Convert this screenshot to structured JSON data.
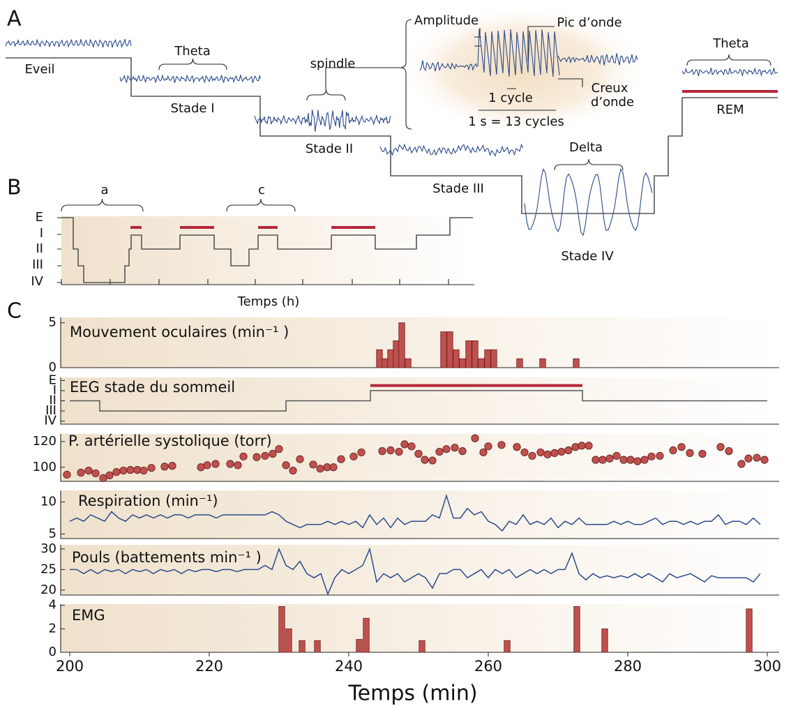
{
  "panel_labels": [
    "A",
    "B",
    "C"
  ],
  "panel_a": {
    "stages": [
      "Eveil",
      "Stade I",
      "Stade II",
      "Stade III",
      "Stade IV",
      "REM"
    ],
    "waves": [
      "Theta",
      "spindle",
      "Delta",
      "Theta"
    ],
    "inset": {
      "amplitude": "Amplitude",
      "peak": "Pic d’onde",
      "trough": [
        "Creux",
        "d’onde"
      ],
      "cycle": "1 cycle",
      "scale": "1 s = 13 cycles"
    }
  },
  "panel_b": {
    "brackets": [
      "a",
      "c"
    ],
    "levels": [
      "E",
      "I",
      "II",
      "III",
      "IV"
    ],
    "xlabel": "Temps (h)"
  },
  "chart_data": [
    {
      "type": "bar",
      "title": "Mouvement oculaires (min⁻¹ )",
      "color": "#c0504d",
      "x": [
        244.4,
        245.2,
        246.0,
        246.8,
        247.6,
        248.5,
        253.6,
        254.5,
        255.4,
        256.3,
        257.2,
        258.1,
        259.0,
        259.9,
        260.8,
        264.5,
        267.8,
        272.6
      ],
      "values": [
        2,
        1,
        2,
        3,
        5,
        1,
        4,
        4,
        2,
        1,
        3,
        3,
        1,
        2,
        2,
        1,
        1,
        1
      ],
      "xlim": [
        198.7,
        301.7
      ],
      "ylim": [
        0,
        5.6
      ],
      "yticks": [
        0,
        5
      ]
    },
    {
      "type": "step",
      "title": "EEG stade du sommeil",
      "color": "#555555",
      "x": [
        200,
        204.3,
        204.3,
        231.0,
        231.0,
        243.1,
        243.1,
        273.5,
        273.5,
        300
      ],
      "values": [
        2,
        2,
        3,
        3,
        2,
        2,
        1,
        1,
        2,
        2
      ],
      "highlight": {
        "x": [
          243.1,
          273.5
        ],
        "y": 0.5,
        "color": "#b5273a"
      },
      "xlim": [
        198.7,
        301.7
      ],
      "ylim": [
        4.3,
        -0.3
      ],
      "yticks": [
        {
          "value": 0,
          "label": "E"
        },
        {
          "value": 1,
          "label": "I"
        },
        {
          "value": 2,
          "label": "II"
        },
        {
          "value": 3,
          "label": "III"
        },
        {
          "value": 4,
          "label": "IV"
        }
      ]
    },
    {
      "type": "scatter",
      "title": "P. artérielle systolique (torr)",
      "color": "#c0504d",
      "x": [
        199.6,
        201.6,
        202.7,
        203.7,
        204.8,
        205.7,
        206.7,
        207.7,
        208.7,
        209.7,
        210.6,
        211.7,
        213.6,
        214.7,
        218.8,
        219.7,
        220.9,
        223.0,
        224.1,
        224.9,
        226.8,
        228.0,
        229.1,
        230.0,
        231.0,
        232.0,
        233.0,
        234.9,
        235.9,
        236.9,
        237.8,
        238.9,
        240.7,
        241.8,
        244.8,
        246.0,
        247.2,
        248.0,
        249.0,
        250.0,
        250.9,
        252.0,
        253.0,
        254.0,
        255.2,
        256.3,
        258.1,
        259.3,
        260.0,
        261.9,
        264.1,
        265.2,
        266.3,
        267.5,
        268.5,
        269.5,
        270.5,
        271.5,
        272.5,
        273.4,
        274.4,
        275.4,
        276.4,
        277.4,
        278.4,
        279.4,
        280.4,
        281.4,
        282.4,
        283.4,
        284.6,
        286.5,
        287.7,
        288.9,
        290.7,
        293.3,
        294.5,
        296.3,
        297.3,
        298.5,
        299.6
      ],
      "values": [
        94.2,
        95.8,
        97.4,
        95.3,
        91.6,
        93.7,
        96.3,
        97.4,
        97.9,
        97.9,
        97.4,
        99.5,
        100.5,
        101.1,
        100,
        101.6,
        102.6,
        102.6,
        101.6,
        108.4,
        107.9,
        108.9,
        110.5,
        114.2,
        101.6,
        97.4,
        106.3,
        102.1,
        98.9,
        100,
        100,
        106.3,
        108.4,
        111.6,
        112.6,
        113.2,
        112.1,
        117.9,
        116.3,
        110.5,
        105.8,
        105.3,
        112.1,
        114.2,
        115.3,
        112.6,
        122.6,
        111.6,
        116.3,
        117.4,
        115.8,
        111.6,
        108.9,
        111.6,
        110,
        111.1,
        112.1,
        113.2,
        115.8,
        116.8,
        116.8,
        105.8,
        105.8,
        106.8,
        108.9,
        105.8,
        105.8,
        104.7,
        105.8,
        108.4,
        108.9,
        113.2,
        115.8,
        111.1,
        110.5,
        115.8,
        112.6,
        102.6,
        106.8,
        107.4,
        105.8
      ],
      "xlim": [
        198.7,
        301.7
      ],
      "ylim": [
        89,
        126
      ],
      "yticks": [
        100,
        120
      ]
    },
    {
      "type": "line",
      "title": "Respiration (min⁻¹)",
      "color": "#2b4a8b",
      "x": [
        200,
        201,
        202,
        203,
        204,
        205,
        206,
        207,
        208,
        209,
        210,
        211,
        212,
        213,
        214,
        215,
        216,
        217,
        218,
        219,
        220,
        221,
        222,
        223,
        224,
        225,
        226,
        227,
        228,
        229,
        230,
        231,
        232,
        233,
        234,
        235,
        236,
        237,
        238,
        239,
        240,
        241,
        242,
        243,
        244,
        245,
        246,
        247,
        248,
        249,
        250,
        251,
        252,
        253,
        254,
        255,
        256,
        257,
        258,
        259,
        260,
        261,
        262,
        263,
        264,
        265,
        266,
        267,
        268,
        269,
        270,
        271,
        272,
        273,
        274,
        275,
        276,
        277,
        278,
        279,
        280,
        281,
        282,
        283,
        284,
        285,
        286,
        287,
        288,
        289,
        290,
        291,
        292,
        293,
        294,
        295,
        296,
        297,
        298,
        299
      ],
      "values": [
        7,
        7.5,
        7,
        8,
        7.5,
        7,
        8.5,
        7.5,
        7,
        8,
        7.5,
        8,
        7.5,
        8,
        7.5,
        8,
        8,
        7.5,
        8,
        8,
        8,
        7.5,
        8,
        8,
        8,
        8,
        8,
        8,
        8,
        8.5,
        8,
        7,
        6.5,
        6,
        6.5,
        6.5,
        6.5,
        7,
        6.5,
        7,
        6.5,
        7,
        6,
        8,
        6.5,
        7.5,
        6,
        7.5,
        6.5,
        7,
        7,
        7,
        8,
        7.5,
        11,
        7.5,
        7.5,
        9,
        8,
        8.5,
        7,
        6.5,
        5.5,
        7,
        6.5,
        8,
        6.5,
        7,
        6.5,
        7.5,
        6,
        7,
        6.5,
        7.5,
        6.5,
        6.5,
        6.5,
        6.5,
        7,
        6.5,
        7,
        6.5,
        6.5,
        7,
        7.5,
        6.5,
        7,
        7,
        6.5,
        7,
        6.5,
        7,
        7,
        8,
        6.5,
        7,
        7,
        6.5,
        7.5,
        6.5
      ],
      "xlim": [
        198.7,
        301.7
      ],
      "ylim": [
        4.3,
        11.8
      ],
      "yticks": [
        5,
        10
      ]
    },
    {
      "type": "line",
      "title": "Pouls (battements min⁻¹ )",
      "color": "#2b4a8b",
      "x": [
        200,
        201,
        202,
        203,
        204,
        205,
        206,
        207,
        208,
        209,
        210,
        211,
        212,
        213,
        214,
        215,
        216,
        217,
        218,
        219,
        220,
        221,
        222,
        223,
        224,
        225,
        226,
        227,
        228,
        229,
        230,
        231,
        232,
        233,
        234,
        235,
        236,
        237,
        238,
        239,
        240,
        241,
        242,
        243,
        244,
        245,
        246,
        247,
        248,
        249,
        250,
        251,
        252,
        253,
        254,
        255,
        256,
        257,
        258,
        259,
        260,
        261,
        262,
        263,
        264,
        265,
        266,
        267,
        268,
        269,
        270,
        271,
        272,
        273,
        274,
        275,
        276,
        277,
        278,
        279,
        280,
        281,
        282,
        283,
        284,
        285,
        286,
        287,
        288,
        289,
        290,
        291,
        292,
        293,
        294,
        295,
        296,
        297,
        298,
        299
      ],
      "values": [
        25,
        25,
        24,
        25,
        24,
        25,
        24.5,
        25,
        24,
        25,
        24.5,
        25,
        24,
        25,
        24.5,
        25,
        24,
        25,
        24.5,
        25,
        25,
        24.5,
        25,
        25,
        24.5,
        25,
        25,
        25,
        26,
        25,
        30,
        26,
        25,
        27,
        24,
        23,
        24,
        19,
        23,
        25,
        24,
        25,
        26,
        30,
        22,
        24,
        23,
        24,
        22,
        23,
        24,
        23,
        20.5,
        24,
        24,
        25,
        25,
        23,
        24,
        25,
        23,
        25,
        24,
        25,
        23,
        24,
        25,
        24,
        25,
        24,
        25,
        25,
        29,
        24,
        22.5,
        24,
        23,
        23.5,
        23,
        23.5,
        23,
        24,
        23,
        24,
        23,
        22,
        24,
        23,
        23.5,
        24,
        23,
        22,
        23.5,
        23,
        23,
        23,
        23,
        23,
        22,
        24
      ],
      "xlim": [
        198.7,
        301.7
      ],
      "ylim": [
        18.8,
        31
      ],
      "yticks": [
        20,
        25,
        30
      ]
    },
    {
      "type": "bar",
      "title": "EMG",
      "color": "#c0504d",
      "x": [
        230.4,
        231.4,
        233.3,
        235.5,
        241.5,
        242.5,
        250.5,
        262.7,
        272.7,
        276.7,
        297.4
      ],
      "values": [
        3.9,
        2,
        1,
        1,
        1.1,
        2.9,
        1,
        1,
        3.9,
        2,
        3.7
      ],
      "xlim": [
        198.7,
        301.7
      ],
      "ylim": [
        0,
        4.1
      ],
      "yticks": [
        0,
        2,
        4
      ],
      "xticks": [
        200,
        220,
        240,
        260,
        280,
        300
      ],
      "xlabel": "Temps (min)"
    }
  ]
}
